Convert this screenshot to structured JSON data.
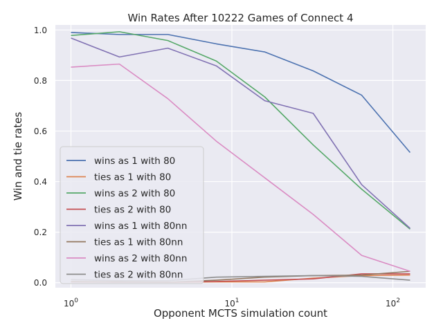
{
  "chart_data": {
    "type": "line",
    "title": "Win Rates After 10222 Games of Connect 4",
    "xlabel": "Opponent MCTS simulation count",
    "ylabel": "Win and tie rates",
    "xscale": "log",
    "xlim": [
      0.8,
      160
    ],
    "ylim": [
      -0.02,
      1.02
    ],
    "xticks": [
      {
        "value": 1,
        "base": "10",
        "exp": "0"
      },
      {
        "value": 10,
        "base": "10",
        "exp": "1"
      },
      {
        "value": 100,
        "base": "10",
        "exp": "2"
      }
    ],
    "yticks": [
      {
        "value": 0.0,
        "label": "0.0"
      },
      {
        "value": 0.2,
        "label": "0.2"
      },
      {
        "value": 0.4,
        "label": "0.4"
      },
      {
        "value": 0.6,
        "label": "0.6"
      },
      {
        "value": 0.8,
        "label": "0.8"
      },
      {
        "value": 1.0,
        "label": "1.0"
      }
    ],
    "grid": true,
    "legend_position": "lower-left",
    "x": [
      1,
      2,
      4,
      8,
      16,
      32,
      64,
      128
    ],
    "series": [
      {
        "name": "wins as 1 with 80",
        "color": "#4c72b0",
        "values": [
          0.99,
          0.982,
          0.982,
          0.945,
          0.913,
          0.838,
          0.742,
          0.515
        ]
      },
      {
        "name": "ties as 1 with 80",
        "color": "#dd8452",
        "values": [
          0.005,
          0.003,
          0.002,
          0.003,
          0.003,
          0.018,
          0.028,
          0.03
        ]
      },
      {
        "name": "wins as 2 with 80",
        "color": "#55a868",
        "values": [
          0.978,
          0.993,
          0.958,
          0.877,
          0.735,
          0.545,
          0.37,
          0.212
        ]
      },
      {
        "name": "ties as 2 with 80",
        "color": "#c44e52",
        "values": [
          0.003,
          0.002,
          0.002,
          0.005,
          0.01,
          0.015,
          0.035,
          0.035
        ]
      },
      {
        "name": "wins as 1 with 80nn",
        "color": "#8172b3",
        "values": [
          0.968,
          0.893,
          0.928,
          0.858,
          0.72,
          0.67,
          0.388,
          0.215
        ]
      },
      {
        "name": "ties as 1 with 80nn",
        "color": "#937860",
        "values": [
          0.004,
          0.003,
          0.002,
          0.01,
          0.022,
          0.028,
          0.03,
          0.045
        ]
      },
      {
        "name": "wins as 2 with 80nn",
        "color": "#da8bc3",
        "values": [
          0.853,
          0.865,
          0.728,
          0.56,
          0.415,
          0.27,
          0.108,
          0.045
        ]
      },
      {
        "name": "ties as 2 with 80nn",
        "color": "#8c8c8c",
        "values": [
          0.012,
          0.008,
          0.008,
          0.022,
          0.025,
          0.028,
          0.025,
          0.01
        ]
      }
    ]
  }
}
